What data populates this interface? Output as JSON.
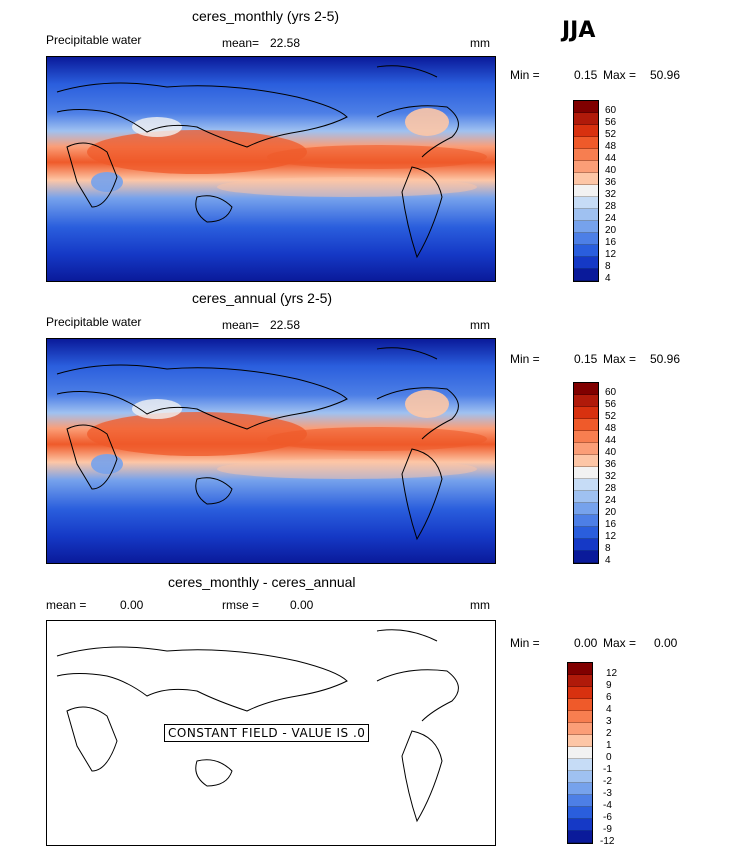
{
  "season": "JJA",
  "panels": [
    {
      "title": "ceres_monthly (yrs 2-5)",
      "left_label": "Precipitable water",
      "mean_label": "mean=",
      "mean_value": "22.58",
      "units": "mm",
      "min_label": "Min =",
      "min_value": "0.15",
      "max_label": "Max =",
      "max_value": "50.96",
      "colorbar_ticks": [
        "60",
        "56",
        "52",
        "48",
        "44",
        "40",
        "36",
        "32",
        "28",
        "24",
        "20",
        "16",
        "12",
        "8",
        "4"
      ]
    },
    {
      "title": "ceres_annual (yrs 2-5)",
      "left_label": "Precipitable water",
      "mean_label": "mean=",
      "mean_value": "22.58",
      "units": "mm",
      "min_label": "Min =",
      "min_value": "0.15",
      "max_label": "Max =",
      "max_value": "50.96",
      "colorbar_ticks": [
        "60",
        "56",
        "52",
        "48",
        "44",
        "40",
        "36",
        "32",
        "28",
        "24",
        "20",
        "16",
        "12",
        "8",
        "4"
      ]
    },
    {
      "title": "ceres_monthly - ceres_annual",
      "mean_label": "mean =",
      "mean_value": "0.00",
      "rmse_label": "rmse =",
      "rmse_value": "0.00",
      "units": "mm",
      "min_label": "Min =",
      "min_value": "0.00",
      "max_label": "Max =",
      "max_value": "0.00",
      "constant_field_text": "CONSTANT FIELD - VALUE IS .0",
      "colorbar_ticks": [
        "12",
        "9",
        "6",
        "4",
        "3",
        "2",
        "1",
        "0",
        "-1",
        "-2",
        "-3",
        "-4",
        "-6",
        "-9",
        "-12"
      ]
    }
  ],
  "colors": {
    "scale": [
      "#800000",
      "#b01a0a",
      "#d8310f",
      "#ef5a2a",
      "#f77e50",
      "#fb9e77",
      "#fdc6a6",
      "#f2f2f2",
      "#c6dcf6",
      "#9fc1f1",
      "#76a2ec",
      "#4d7fe6",
      "#2a5edd",
      "#1539c6",
      "#0a1a9a"
    ]
  }
}
